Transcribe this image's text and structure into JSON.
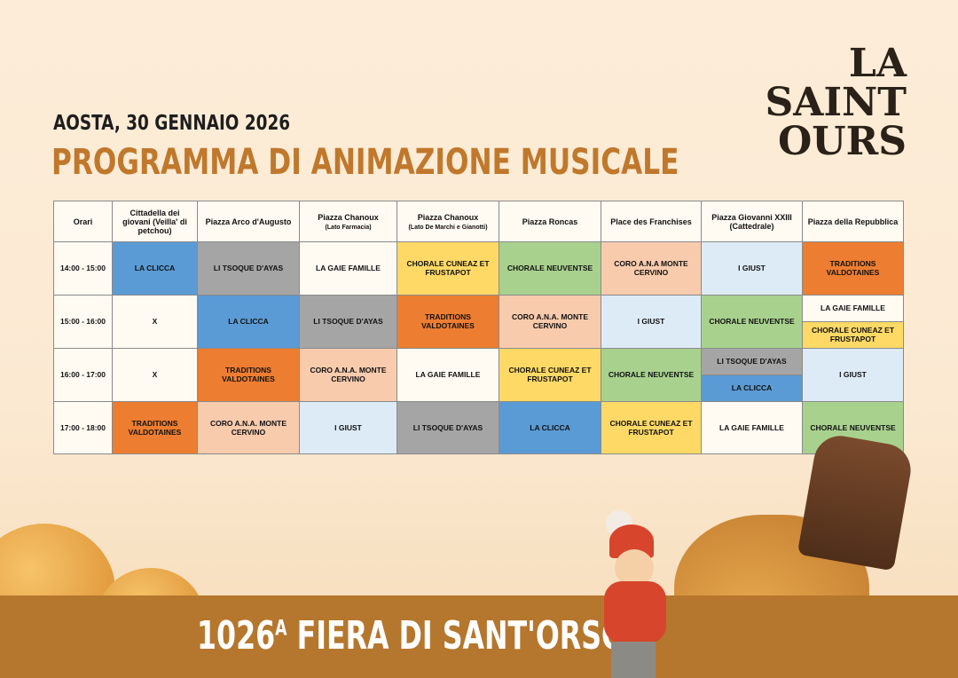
{
  "header": {
    "date": "AOSTA, 30 GENNAIO 2026",
    "title": "PROGRAMMA DI ANIMAZIONE MUSICALE",
    "logo": "LA SAINT OURS"
  },
  "colors": {
    "blue": "#5b9bd5",
    "gray": "#a5a5a5",
    "white": "#fffaf2",
    "yellow": "#ffd966",
    "green": "#a9d18e",
    "peach": "#f8cbad",
    "lightblue": "#ddebf7",
    "orange": "#ed7d31"
  },
  "table": {
    "columns": [
      {
        "label": "Orari"
      },
      {
        "label": "Cittadella dei giovani (Veilla' di petchou)"
      },
      {
        "label": "Piazza Arco d'Augusto"
      },
      {
        "label": "Piazza Chanoux",
        "sub": "(Lato Farmacia)"
      },
      {
        "label": "Piazza Chanoux",
        "sub": "(Lato De Marchi e Gianotti)"
      },
      {
        "label": "Piazza Roncas"
      },
      {
        "label": "Place des Franchises"
      },
      {
        "label": "Piazza Giovanni XXIII (Cattedrale)"
      },
      {
        "label": "Piazza della Repubblica"
      }
    ],
    "rows": [
      {
        "time": "14:00 - 15:00",
        "cells": [
          {
            "label": "La Clicca",
            "color": "blue"
          },
          {
            "label": "Li Tsoque d'Ayas",
            "color": "gray"
          },
          {
            "label": "La Gaie Famille",
            "color": "white"
          },
          {
            "label": "Chorale Cuneaz et Frustapot",
            "color": "yellow"
          },
          {
            "label": "Chorale Neuventse",
            "color": "green"
          },
          {
            "label": "Coro A.N.A Monte Cervino",
            "color": "peach"
          },
          {
            "label": "I Giust",
            "color": "lightblue"
          },
          {
            "label": "Traditions Valdotaines",
            "color": "orange"
          }
        ]
      },
      {
        "time": "15:00 - 16:00",
        "cells": [
          {
            "label": "X",
            "color": "white"
          },
          {
            "label": "La Clicca",
            "color": "blue"
          },
          {
            "label": "Li Tsoque d'Ayas",
            "color": "gray"
          },
          {
            "label": "Traditions Valdotaines",
            "color": "orange"
          },
          {
            "label": "Coro A.N.A. Monte Cervino",
            "color": "peach"
          },
          {
            "label": "I Giust",
            "color": "lightblue"
          },
          {
            "label": "Chorale Neuventse",
            "color": "green"
          },
          {
            "split": [
              {
                "label": "La Gaie Famille",
                "color": "white"
              },
              {
                "label": "Chorale Cuneaz et Frustapot",
                "color": "yellow"
              }
            ]
          }
        ]
      },
      {
        "time": "16:00 - 17:00",
        "cells": [
          {
            "label": "X",
            "color": "white"
          },
          {
            "label": "Traditions Valdotaines",
            "color": "orange"
          },
          {
            "label": "Coro A.N.A. Monte Cervino",
            "color": "peach"
          },
          {
            "label": "La Gaie Famille",
            "color": "white"
          },
          {
            "label": "Chorale Cuneaz et Frustapot",
            "color": "yellow"
          },
          {
            "label": "Chorale Neuventse",
            "color": "green"
          },
          {
            "split": [
              {
                "label": "Li Tsoque d'Ayas",
                "color": "gray"
              },
              {
                "label": "La Clicca",
                "color": "blue"
              }
            ]
          },
          {
            "label": "I Giust",
            "color": "lightblue"
          }
        ]
      },
      {
        "time": "17:00 - 18:00",
        "cells": [
          {
            "label": "Traditions Valdotaines",
            "color": "orange"
          },
          {
            "label": "Coro A.N.A. Monte Cervino",
            "color": "peach"
          },
          {
            "label": "I Giust",
            "color": "lightblue"
          },
          {
            "label": "Li Tsoque d'Ayas",
            "color": "gray"
          },
          {
            "label": "La Clicca",
            "color": "blue"
          },
          {
            "label": "Chorale Cuneaz et Frustapot",
            "color": "yellow"
          },
          {
            "label": "La Gaie Famille",
            "color": "white"
          },
          {
            "label": "Chorale Neuventse",
            "color": "green"
          }
        ]
      }
    ]
  },
  "banner": {
    "number": "1026",
    "sup": "A",
    "text": " FIERA DI SANT'ORSO"
  }
}
